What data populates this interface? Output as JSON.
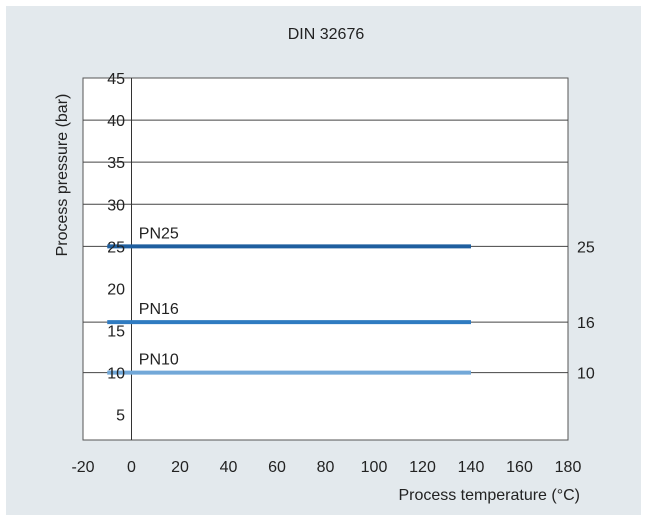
{
  "chart_data": {
    "type": "line",
    "title": "DIN 32676",
    "xlabel": "Process temperature (°C)",
    "ylabel": "Process pressure (bar)",
    "xlim": [
      -20,
      180
    ],
    "ylim": [
      2,
      45
    ],
    "x_ticks": [
      "-20",
      "0",
      "20",
      "40",
      "60",
      "80",
      "100",
      "120",
      "140",
      "160",
      "180"
    ],
    "y_ticks": [
      "5",
      "10",
      "15",
      "20",
      "25",
      "30",
      "35",
      "40",
      "45"
    ],
    "grid": "horizontal",
    "series": [
      {
        "name": "PN25",
        "x": [
          -10,
          140
        ],
        "y": [
          25,
          25
        ],
        "right_label": "25",
        "color": "#1f5f9f"
      },
      {
        "name": "PN16",
        "x": [
          -10,
          140
        ],
        "y": [
          16,
          16
        ],
        "right_label": "16",
        "color": "#2f7bc1"
      },
      {
        "name": "PN10",
        "x": [
          -10,
          140
        ],
        "y": [
          10,
          10
        ],
        "right_label": "10",
        "color": "#72a8d8"
      }
    ]
  }
}
